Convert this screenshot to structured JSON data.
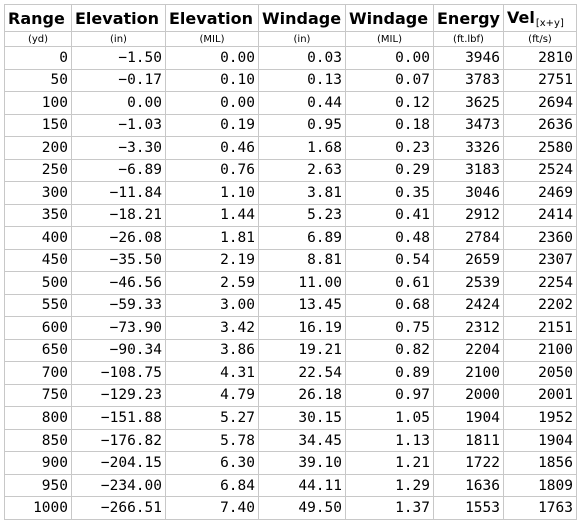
{
  "table": {
    "headers": [
      {
        "label": "Range",
        "sub": "",
        "unit": "(yd)"
      },
      {
        "label": "Elevation",
        "sub": "",
        "unit": "(in)"
      },
      {
        "label": "Elevation",
        "sub": "",
        "unit": "(MIL)"
      },
      {
        "label": "Windage",
        "sub": "",
        "unit": "(in)"
      },
      {
        "label": "Windage",
        "sub": "",
        "unit": "(MIL)"
      },
      {
        "label": "Energy",
        "sub": "",
        "unit": "(ft.lbf)"
      },
      {
        "label": "Vel",
        "sub": "[x+y]",
        "unit": "(ft/s)"
      }
    ],
    "rows": [
      [
        "0",
        "−1.50",
        "0.00",
        "0.03",
        "0.00",
        "3946",
        "2810"
      ],
      [
        "50",
        "−0.17",
        "0.10",
        "0.13",
        "0.07",
        "3783",
        "2751"
      ],
      [
        "100",
        "0.00",
        "0.00",
        "0.44",
        "0.12",
        "3625",
        "2694"
      ],
      [
        "150",
        "−1.03",
        "0.19",
        "0.95",
        "0.18",
        "3473",
        "2636"
      ],
      [
        "200",
        "−3.30",
        "0.46",
        "1.68",
        "0.23",
        "3326",
        "2580"
      ],
      [
        "250",
        "−6.89",
        "0.76",
        "2.63",
        "0.29",
        "3183",
        "2524"
      ],
      [
        "300",
        "−11.84",
        "1.10",
        "3.81",
        "0.35",
        "3046",
        "2469"
      ],
      [
        "350",
        "−18.21",
        "1.44",
        "5.23",
        "0.41",
        "2912",
        "2414"
      ],
      [
        "400",
        "−26.08",
        "1.81",
        "6.89",
        "0.48",
        "2784",
        "2360"
      ],
      [
        "450",
        "−35.50",
        "2.19",
        "8.81",
        "0.54",
        "2659",
        "2307"
      ],
      [
        "500",
        "−46.56",
        "2.59",
        "11.00",
        "0.61",
        "2539",
        "2254"
      ],
      [
        "550",
        "−59.33",
        "3.00",
        "13.45",
        "0.68",
        "2424",
        "2202"
      ],
      [
        "600",
        "−73.90",
        "3.42",
        "16.19",
        "0.75",
        "2312",
        "2151"
      ],
      [
        "650",
        "−90.34",
        "3.86",
        "19.21",
        "0.82",
        "2204",
        "2100"
      ],
      [
        "700",
        "−108.75",
        "4.31",
        "22.54",
        "0.89",
        "2100",
        "2050"
      ],
      [
        "750",
        "−129.23",
        "4.79",
        "26.18",
        "0.97",
        "2000",
        "2001"
      ],
      [
        "800",
        "−151.88",
        "5.27",
        "30.15",
        "1.05",
        "1904",
        "1952"
      ],
      [
        "850",
        "−176.82",
        "5.78",
        "34.45",
        "1.13",
        "1811",
        "1904"
      ],
      [
        "900",
        "−204.15",
        "6.30",
        "39.10",
        "1.21",
        "1722",
        "1856"
      ],
      [
        "950",
        "−234.00",
        "6.84",
        "44.11",
        "1.29",
        "1636",
        "1809"
      ],
      [
        "1000",
        "−266.51",
        "7.40",
        "49.50",
        "1.37",
        "1553",
        "1763"
      ]
    ]
  }
}
